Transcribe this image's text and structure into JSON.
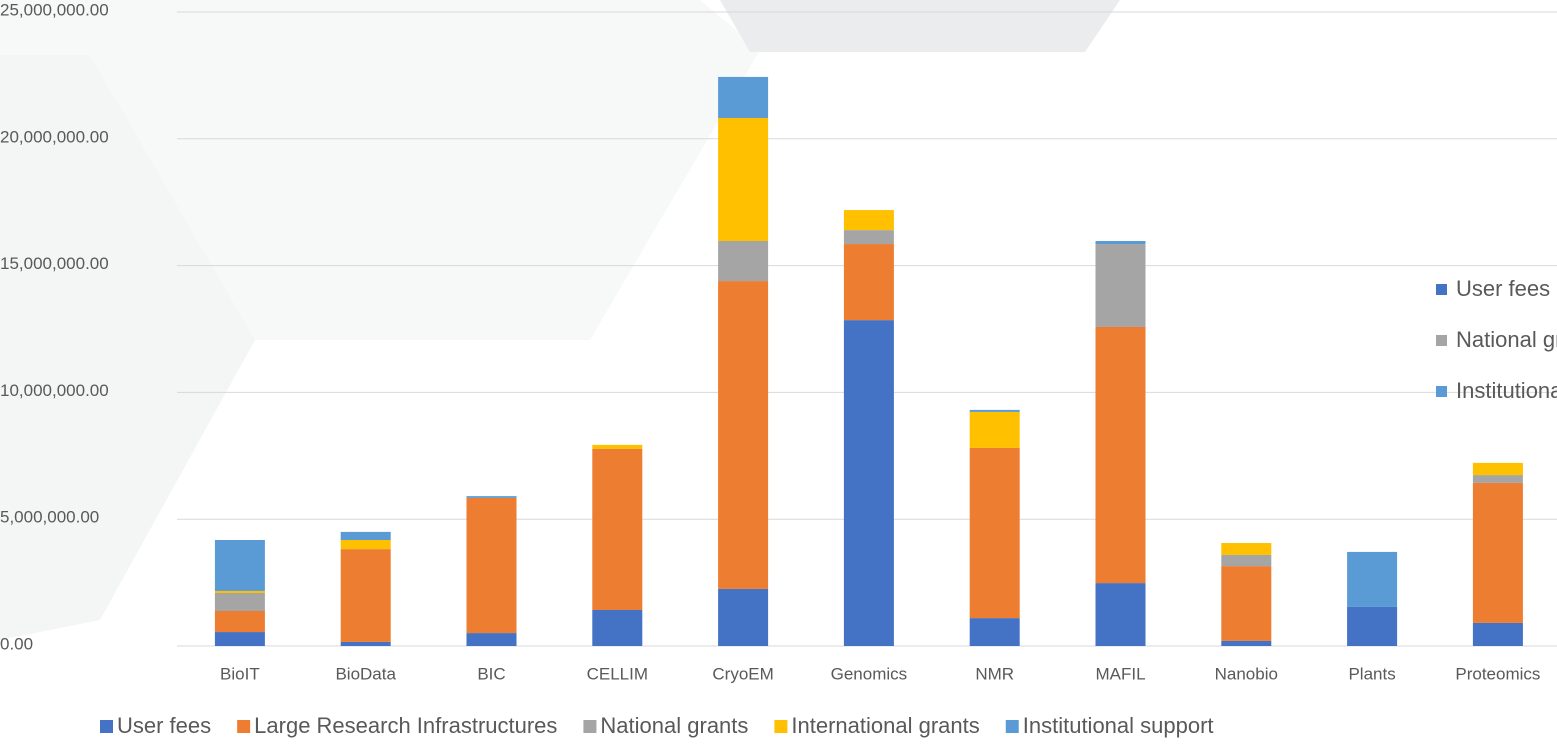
{
  "chart_data": {
    "type": "stacked_bar",
    "categories": [
      "BioIT",
      "BioData",
      "BIC",
      "CELLIM",
      "CryoEM",
      "Genomics",
      "NMR",
      "MAFIL",
      "Nanobio",
      "Plants",
      "Proteomics"
    ],
    "series": [
      {
        "name": "User fees",
        "color": "#4472c4",
        "values": [
          550000,
          160000,
          510000,
          1420000,
          2250000,
          12850000,
          1100000,
          2480000,
          200000,
          1540000,
          910000
        ]
      },
      {
        "name": "Large Research Infrastructures",
        "color": "#ed7d31",
        "values": [
          830000,
          3660000,
          5330000,
          6350000,
          12140000,
          3000000,
          6710000,
          10100000,
          2950000,
          0,
          5520000
        ]
      },
      {
        "name": "National grants",
        "color": "#a5a5a5",
        "values": [
          710000,
          0,
          0,
          0,
          1580000,
          550000,
          0,
          3270000,
          440000,
          0,
          310000
        ]
      },
      {
        "name": "International grants",
        "color": "#ffc000",
        "values": [
          80000,
          360000,
          0,
          160000,
          4850000,
          790000,
          1420000,
          0,
          470000,
          0,
          480000
        ]
      },
      {
        "name": "Institutional support",
        "color": "#5b9bd5",
        "values": [
          2010000,
          320000,
          70000,
          0,
          1620000,
          0,
          80000,
          120000,
          0,
          2170000,
          0
        ]
      }
    ],
    "ylim": [
      0,
      25000000
    ],
    "yticks": [
      {
        "value": 0,
        "label": "0.00"
      },
      {
        "value": 5000000,
        "label": "5,000,000.00"
      },
      {
        "value": 10000000,
        "label": "10,000,000.00"
      },
      {
        "value": 15000000,
        "label": "15,000,000.00"
      },
      {
        "value": 20000000,
        "label": "20,000,000.00"
      },
      {
        "value": 25000000,
        "label": "25,000,000.00"
      }
    ],
    "grid": true
  }
}
